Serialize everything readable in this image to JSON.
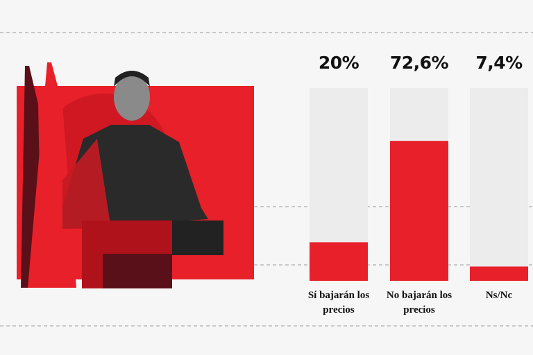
{
  "chart_data": {
    "type": "bar",
    "categories": [
      "Sí bajarán los precios",
      "No bajarán los precios",
      "Ns/Nc"
    ],
    "values": [
      20,
      72.6,
      7.4
    ],
    "value_labels": [
      "20%",
      "72,6%",
      "7,4%"
    ],
    "color": "#e8202a",
    "track_color": "#ececec",
    "ylim": [
      0,
      100
    ]
  }
}
